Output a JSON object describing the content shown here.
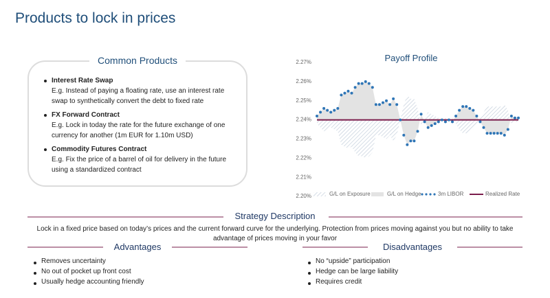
{
  "title": "Products to lock in prices",
  "common_products": {
    "title": "Common Products",
    "items": [
      {
        "name": "Interest Rate Swap",
        "description": "E.g. Instead of paying a floating rate, use an interest rate swap to synthetically convert the debt to fixed rate"
      },
      {
        "name": "FX Forward Contract",
        "description": "E.g. Lock in today the rate for the future exchange of one currency for another (1m EUR for 1.10m USD)"
      },
      {
        "name": "Commodity Futures Contract",
        "description": "E.g. Fix the price of a barrel of oil for delivery in the future using a standardized contract"
      }
    ]
  },
  "chart_data": {
    "type": "line",
    "title": "Payoff Profile",
    "ylim": [
      2.2,
      2.27
    ],
    "yticks": [
      {
        "value": 2.2,
        "label": "2.20%"
      },
      {
        "value": 2.21,
        "label": "2.21%"
      },
      {
        "value": 2.22,
        "label": "2.22%"
      },
      {
        "value": 2.23,
        "label": "2.23%"
      },
      {
        "value": 2.24,
        "label": "2.24%"
      },
      {
        "value": 2.25,
        "label": "2.25%"
      },
      {
        "value": 2.26,
        "label": "2.26%"
      },
      {
        "value": 2.27,
        "label": "2.27%"
      }
    ],
    "grid": false,
    "legend": "bottom",
    "series": [
      {
        "name": "G/L on Exposure",
        "color": "#c3cedb",
        "style": "hatched-area",
        "values": [
          2.238,
          2.236,
          2.234,
          2.235,
          2.236,
          2.235,
          2.234,
          2.227,
          2.226,
          2.225,
          2.226,
          2.223,
          2.221,
          2.221,
          2.22,
          2.221,
          2.223,
          2.232,
          2.232,
          2.231,
          2.23,
          2.232,
          2.229,
          2.232,
          2.24,
          2.248,
          2.253,
          2.251,
          2.251,
          2.246,
          2.237,
          2.241,
          2.244,
          2.243,
          2.242,
          2.241,
          2.24,
          2.241,
          2.24,
          2.241,
          2.238,
          2.235,
          2.233,
          2.233,
          2.234,
          2.235,
          2.238,
          2.241,
          2.244,
          2.247,
          2.247,
          2.247,
          2.247,
          2.247,
          2.248,
          2.245,
          2.238,
          2.239,
          2.239
        ]
      },
      {
        "name": "G/L on Hedge",
        "color": "#e3e3e3",
        "style": "area"
      },
      {
        "name": "3m LIBOR",
        "color": "#2e75b6",
        "style": "dots",
        "values": [
          2.242,
          2.244,
          2.246,
          2.245,
          2.244,
          2.245,
          2.246,
          2.253,
          2.254,
          2.255,
          2.254,
          2.257,
          2.259,
          2.259,
          2.26,
          2.259,
          2.257,
          2.248,
          2.248,
          2.249,
          2.25,
          2.248,
          2.251,
          2.248,
          2.24,
          2.232,
          2.227,
          2.229,
          2.229,
          2.234,
          2.243,
          2.239,
          2.236,
          2.237,
          2.238,
          2.239,
          2.24,
          2.239,
          2.24,
          2.239,
          2.242,
          2.245,
          2.247,
          2.247,
          2.246,
          2.245,
          2.242,
          2.239,
          2.236,
          2.233,
          2.233,
          2.233,
          2.233,
          2.233,
          2.232,
          2.235,
          2.242,
          2.241,
          2.241
        ]
      },
      {
        "name": "Realized Rate",
        "color": "#7a1c4b",
        "style": "line",
        "values": [
          2.24,
          2.24,
          2.24,
          2.24,
          2.24,
          2.24,
          2.24,
          2.24,
          2.24,
          2.24,
          2.24,
          2.24,
          2.24,
          2.24,
          2.24,
          2.24,
          2.24,
          2.24,
          2.24,
          2.24,
          2.24,
          2.24,
          2.24,
          2.24,
          2.24,
          2.24,
          2.24,
          2.24,
          2.24,
          2.24,
          2.24,
          2.24,
          2.24,
          2.24,
          2.24,
          2.24,
          2.24,
          2.24,
          2.24,
          2.24,
          2.24,
          2.24,
          2.24,
          2.24,
          2.24,
          2.24,
          2.24,
          2.24,
          2.24,
          2.24,
          2.24,
          2.24,
          2.24,
          2.24,
          2.24,
          2.24,
          2.24,
          2.24,
          2.24
        ]
      }
    ]
  },
  "strategy": {
    "title": "Strategy Description",
    "description": "Lock in a fixed price based on today’s prices and the current forward curve for the underlying. Protection from prices moving against you but no ability to take advantage of prices moving in your favor"
  },
  "advantages": {
    "title": "Advantages",
    "items": [
      "Removes uncertainty",
      "No out of pocket up front cost",
      "Usually hedge accounting friendly"
    ]
  },
  "disadvantages": {
    "title": "Disadvantages",
    "items": [
      "No “upside” participation",
      "Hedge can be large liability",
      "Requires credit"
    ]
  }
}
